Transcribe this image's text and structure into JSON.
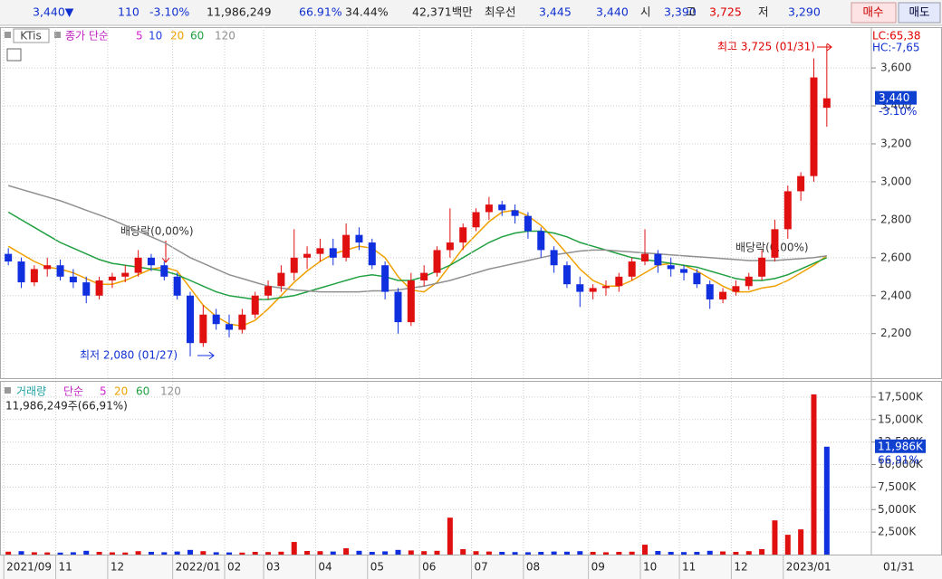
{
  "header": {
    "items": [
      "3,440▼",
      "110",
      "-3.10%",
      "11,986,249",
      "66.91%",
      "34.44%",
      "42,371백만",
      "최우선",
      "3,445",
      "3,440",
      "시",
      "3,390",
      "고",
      "3,725",
      "저",
      "3,290"
    ],
    "buttons": [
      "매수",
      "매도"
    ]
  },
  "chart_data": [
    {
      "type": "candlestick",
      "title": "KTis",
      "legend_label": "종가 단순",
      "up_color": "#e01010",
      "down_color": "#1030e0",
      "open": [
        2620,
        2580,
        2470,
        2540,
        2560,
        2500,
        2470,
        2400,
        2480,
        2500,
        2520,
        2600,
        2560,
        2500,
        2400,
        2150,
        2300,
        2250,
        2220,
        2300,
        2400,
        2450,
        2520,
        2600,
        2620,
        2650,
        2600,
        2720,
        2680,
        2560,
        2420,
        2260,
        2480,
        2520,
        2640,
        2680,
        2760,
        2840,
        2880,
        2850,
        2820,
        2740,
        2640,
        2560,
        2460,
        2420,
        2440,
        2450,
        2500,
        2580,
        2620,
        2560,
        2540,
        2520,
        2460,
        2380,
        2420,
        2450,
        2500,
        2600,
        2750,
        2950,
        3030,
        3390
      ],
      "high": [
        2650,
        2600,
        2560,
        2600,
        2590,
        2540,
        2500,
        2500,
        2520,
        2560,
        2640,
        2620,
        2580,
        2520,
        2420,
        2350,
        2330,
        2300,
        2330,
        2420,
        2480,
        2560,
        2750,
        2660,
        2700,
        2700,
        2780,
        2760,
        2700,
        2580,
        2440,
        2520,
        2560,
        2660,
        2860,
        2780,
        2860,
        2920,
        2900,
        2880,
        2840,
        2760,
        2660,
        2580,
        2500,
        2460,
        2480,
        2520,
        2600,
        2750,
        2640,
        2600,
        2560,
        2540,
        2480,
        2440,
        2480,
        2520,
        2640,
        2800,
        2980,
        3050,
        3650,
        3725
      ],
      "low": [
        2560,
        2440,
        2450,
        2500,
        2480,
        2440,
        2360,
        2380,
        2440,
        2470,
        2500,
        2530,
        2480,
        2380,
        2080,
        2130,
        2220,
        2180,
        2200,
        2280,
        2380,
        2420,
        2480,
        2540,
        2580,
        2560,
        2580,
        2640,
        2540,
        2380,
        2200,
        2240,
        2450,
        2500,
        2600,
        2640,
        2740,
        2800,
        2820,
        2780,
        2700,
        2600,
        2520,
        2440,
        2340,
        2380,
        2400,
        2420,
        2480,
        2560,
        2520,
        2500,
        2480,
        2440,
        2330,
        2360,
        2400,
        2430,
        2480,
        2580,
        2700,
        2900,
        3000,
        3290
      ],
      "close": [
        2580,
        2470,
        2540,
        2560,
        2500,
        2470,
        2400,
        2480,
        2500,
        2520,
        2600,
        2560,
        2500,
        2400,
        2150,
        2300,
        2250,
        2220,
        2300,
        2400,
        2450,
        2520,
        2600,
        2620,
        2650,
        2600,
        2720,
        2680,
        2560,
        2420,
        2260,
        2480,
        2520,
        2640,
        2680,
        2760,
        2840,
        2880,
        2850,
        2820,
        2740,
        2640,
        2560,
        2460,
        2420,
        2440,
        2450,
        2500,
        2580,
        2620,
        2560,
        2540,
        2520,
        2460,
        2380,
        2420,
        2450,
        2500,
        2600,
        2750,
        2950,
        3030,
        3550,
        3440
      ],
      "moving_averages": [
        {
          "name": "5",
          "color": "#d020d0"
        },
        {
          "name": "10",
          "color": "#2040e0"
        },
        {
          "name": "20",
          "color": "#f0a000",
          "values": [
            2660,
            2620,
            2580,
            2550,
            2540,
            2520,
            2490,
            2460,
            2460,
            2480,
            2510,
            2540,
            2550,
            2530,
            2440,
            2350,
            2290,
            2250,
            2240,
            2270,
            2330,
            2400,
            2470,
            2530,
            2580,
            2620,
            2640,
            2660,
            2650,
            2600,
            2500,
            2430,
            2420,
            2470,
            2560,
            2650,
            2720,
            2790,
            2840,
            2850,
            2820,
            2770,
            2700,
            2620,
            2540,
            2480,
            2450,
            2450,
            2480,
            2520,
            2560,
            2570,
            2560,
            2530,
            2490,
            2450,
            2420,
            2420,
            2440,
            2450,
            2480,
            2520,
            2560,
            2610
          ]
        },
        {
          "name": "60",
          "color": "#20a040",
          "values": [
            2840,
            2800,
            2760,
            2720,
            2680,
            2650,
            2620,
            2590,
            2570,
            2560,
            2550,
            2540,
            2530,
            2510,
            2480,
            2450,
            2420,
            2400,
            2390,
            2380,
            2380,
            2390,
            2400,
            2420,
            2440,
            2460,
            2480,
            2500,
            2510,
            2500,
            2480,
            2480,
            2500,
            2530,
            2560,
            2600,
            2640,
            2680,
            2710,
            2730,
            2740,
            2740,
            2730,
            2710,
            2680,
            2660,
            2640,
            2620,
            2600,
            2590,
            2580,
            2570,
            2560,
            2550,
            2530,
            2510,
            2490,
            2480,
            2480,
            2490,
            2510,
            2540,
            2570,
            2600
          ]
        },
        {
          "name": "120",
          "color": "#909090",
          "values": [
            2980,
            2960,
            2940,
            2920,
            2900,
            2875,
            2850,
            2825,
            2800,
            2770,
            2740,
            2710,
            2680,
            2640,
            2600,
            2570,
            2540,
            2510,
            2490,
            2470,
            2450,
            2440,
            2430,
            2425,
            2420,
            2420,
            2420,
            2420,
            2425,
            2425,
            2430,
            2440,
            2450,
            2465,
            2480,
            2500,
            2520,
            2540,
            2555,
            2570,
            2585,
            2600,
            2615,
            2625,
            2635,
            2640,
            2640,
            2635,
            2630,
            2625,
            2620,
            2615,
            2610,
            2605,
            2600,
            2595,
            2590,
            2585,
            2585,
            2585,
            2590,
            2595,
            2600,
            2610
          ]
        }
      ],
      "xlim": [
        -0.5,
        63.5
      ],
      "ylim": [
        1965,
        3815
      ],
      "yticks": [
        {
          "value": 2200,
          "label": "2,200"
        },
        {
          "value": 2400,
          "label": "2,400"
        },
        {
          "value": 2600,
          "label": "2,600"
        },
        {
          "value": 2800,
          "label": "2,800"
        },
        {
          "value": 3000,
          "label": "3,000"
        },
        {
          "value": 3200,
          "label": "3,200"
        },
        {
          "value": 3400,
          "label": "3,400"
        },
        {
          "value": 3600,
          "label": "3,600"
        }
      ],
      "grid": true,
      "annotations": [
        "최고 3,725 (01/31)",
        "최저 2,080 (01/27)",
        "배당락(0,00%)",
        "배당락(0,00%)"
      ],
      "indicators": [
        "LC:65,38",
        "HC:-7,65"
      ],
      "last_label": "3,440",
      "last_change": "-3.10%"
    },
    {
      "type": "bar",
      "title": "거래량",
      "legend_label": "단순",
      "moving_averages": [
        {
          "name": "5",
          "color": "#d020d0"
        },
        {
          "name": "20",
          "color": "#f0a000"
        },
        {
          "name": "60",
          "color": "#20a040"
        },
        {
          "name": "120",
          "color": "#909090"
        }
      ],
      "volume_info": "11,986,249주(66,91%)",
      "values": [
        320,
        380,
        260,
        240,
        220,
        260,
        420,
        300,
        250,
        230,
        380,
        300,
        260,
        340,
        520,
        380,
        260,
        240,
        220,
        300,
        280,
        320,
        1400,
        400,
        380,
        340,
        700,
        420,
        300,
        360,
        520,
        460,
        380,
        420,
        4100,
        600,
        380,
        340,
        300,
        280,
        260,
        300,
        340,
        320,
        380,
        300,
        260,
        300,
        320,
        1100,
        400,
        300,
        280,
        300,
        420,
        350,
        300,
        380,
        600,
        3800,
        2200,
        2800,
        17800,
        11986
      ],
      "xlim": [
        -0.5,
        63.5
      ],
      "ylim": [
        0,
        19200
      ],
      "yticks": [
        {
          "value": 2500,
          "label": "2,500K"
        },
        {
          "value": 5000,
          "label": "5,000K"
        },
        {
          "value": 7500,
          "label": "7,500K"
        },
        {
          "value": 10000,
          "label": "10,000K"
        },
        {
          "value": 12500,
          "label": "12,500K"
        },
        {
          "value": 15000,
          "label": "15,000K"
        },
        {
          "value": 17500,
          "label": "17,500K"
        }
      ],
      "grid": true,
      "xticks": [
        {
          "value": 0,
          "label": "2021/09"
        },
        {
          "value": 4,
          "label": "11"
        },
        {
          "value": 8,
          "label": "12"
        },
        {
          "value": 13,
          "label": "2022/01"
        },
        {
          "value": 17,
          "label": "02"
        },
        {
          "value": 20,
          "label": "03"
        },
        {
          "value": 24,
          "label": "04"
        },
        {
          "value": 28,
          "label": "05"
        },
        {
          "value": 32,
          "label": "06"
        },
        {
          "value": 36,
          "label": "07"
        },
        {
          "value": 40,
          "label": "08"
        },
        {
          "value": 45,
          "label": "09"
        },
        {
          "value": 49,
          "label": "10"
        },
        {
          "value": 52,
          "label": "11"
        },
        {
          "value": 56,
          "label": "12"
        },
        {
          "value": 60,
          "label": "2023/01"
        }
      ],
      "last_date": "01/31",
      "last_label": "11,986K",
      "last_pct": "66,91%"
    }
  ]
}
